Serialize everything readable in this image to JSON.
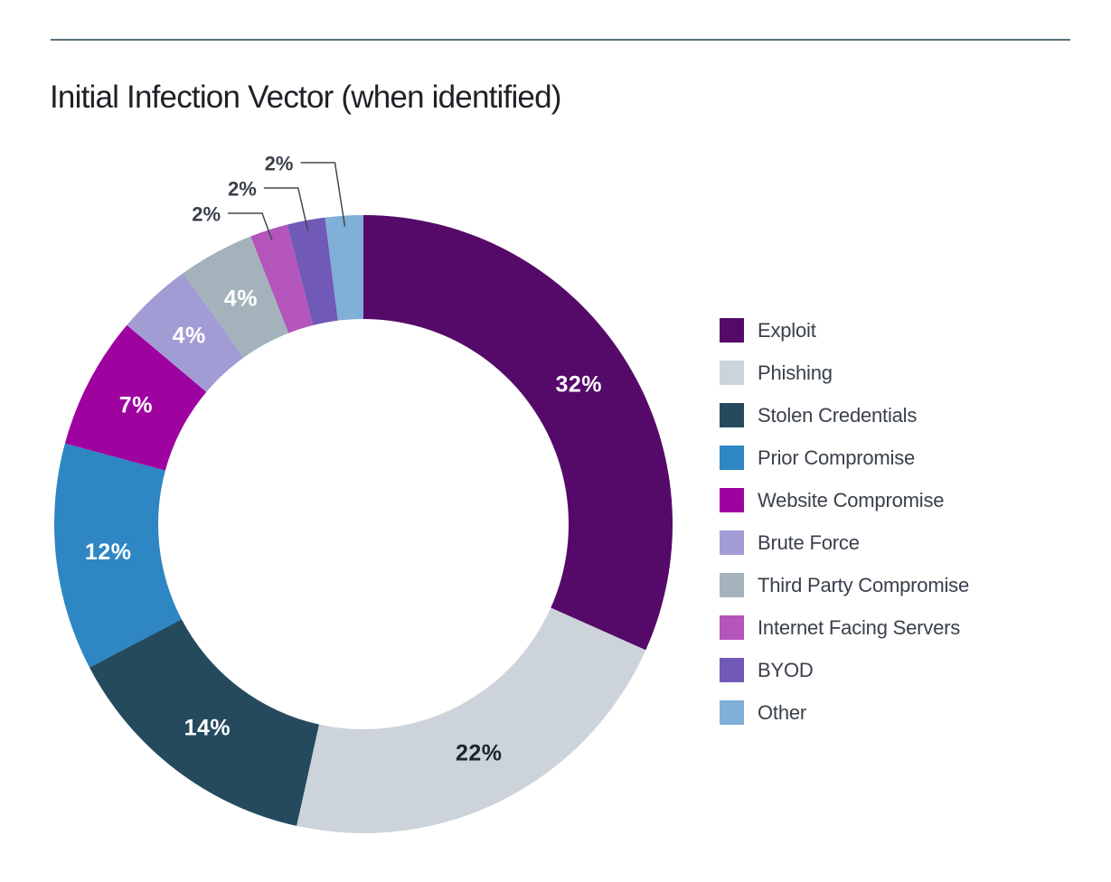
{
  "page": {
    "heading": "Initial Infection Vector (when identified)"
  },
  "chart_data": {
    "type": "pie",
    "subtype": "donut",
    "title": "Initial Infection Vector (when identified)",
    "legend_position": "right",
    "value_label_format": "percent",
    "start_angle_deg": 0,
    "direction": "clockwise",
    "series": [
      {
        "label": "Exploit",
        "value": 32,
        "color": "#550a69",
        "text_color": "#ffffff"
      },
      {
        "label": "Phishing",
        "value": 22,
        "color": "#ccd3da",
        "text_color": "#1e242e"
      },
      {
        "label": "Stolen Credentials",
        "value": 14,
        "color": "#254a5e",
        "text_color": "#ffffff"
      },
      {
        "label": "Prior Compromise",
        "value": 12,
        "color": "#2e86c3",
        "text_color": "#ffffff"
      },
      {
        "label": "Website Compromise",
        "value": 7,
        "color": "#9e03a0",
        "text_color": "#ffffff"
      },
      {
        "label": "Brute Force",
        "value": 4,
        "color": "#a29cd5",
        "text_color": "#ffffff"
      },
      {
        "label": "Third Party Compromise",
        "value": 4,
        "color": "#a4b3bb",
        "text_color": "#ffffff"
      },
      {
        "label": "Internet Facing Servers",
        "value": 2,
        "color": "#b455bb",
        "callout": true
      },
      {
        "label": "BYOD",
        "value": 2,
        "color": "#7159b7",
        "callout": true
      },
      {
        "label": "Other",
        "value": 2,
        "color": "#80afd7",
        "callout": true
      }
    ]
  }
}
